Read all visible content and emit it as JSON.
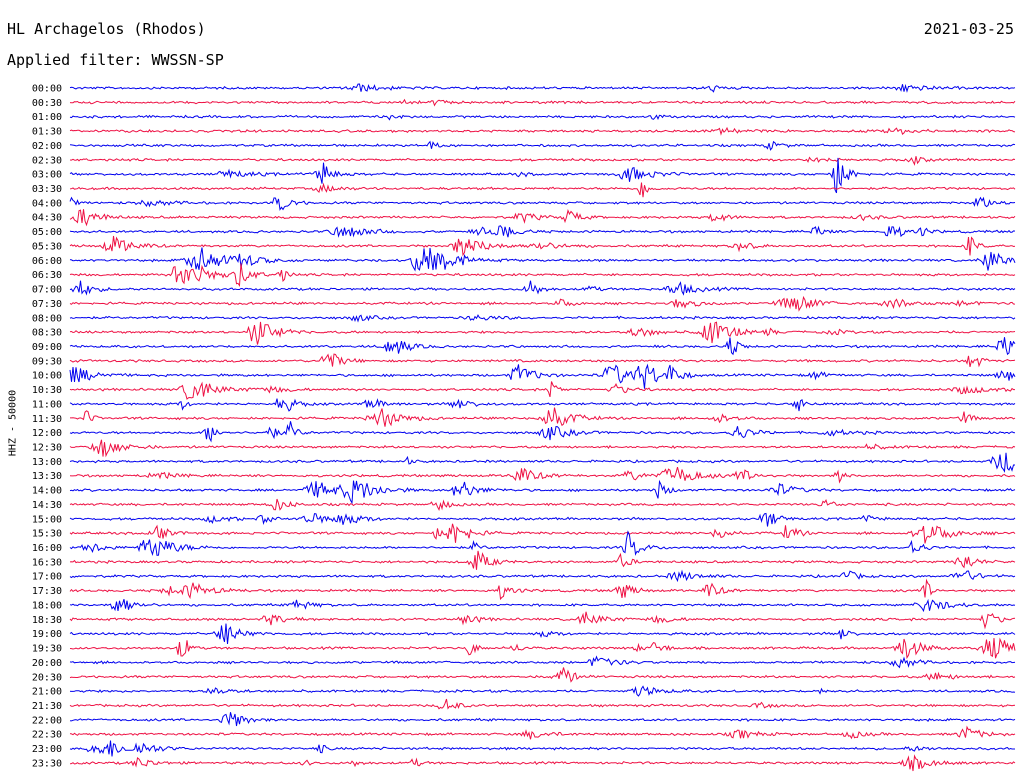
{
  "header": {
    "station": "HL Archagelos (Rhodos)",
    "date": "2021-03-25",
    "filter": "Applied filter: WWSSN-SP"
  },
  "chart_data": {
    "type": "line",
    "title": "HL Archagelos (Rhodos)",
    "ylabel": "HHZ - 50000",
    "rows": [
      "00:00",
      "00:30",
      "01:00",
      "01:30",
      "02:00",
      "02:30",
      "03:00",
      "03:30",
      "04:00",
      "04:30",
      "05:00",
      "05:30",
      "06:00",
      "06:30",
      "07:00",
      "07:30",
      "08:00",
      "08:30",
      "09:00",
      "09:30",
      "10:00",
      "10:30",
      "11:00",
      "11:30",
      "12:00",
      "12:30",
      "13:00",
      "13:30",
      "14:00",
      "14:30",
      "15:00",
      "15:30",
      "16:00",
      "16:30",
      "17:00",
      "17:30",
      "18:00",
      "18:30",
      "19:00",
      "19:30",
      "20:00",
      "20:30",
      "21:00",
      "21:30",
      "22:00",
      "22:30",
      "23:00",
      "23:30"
    ],
    "colors": [
      "#0000ee",
      "#ee1144"
    ]
  }
}
